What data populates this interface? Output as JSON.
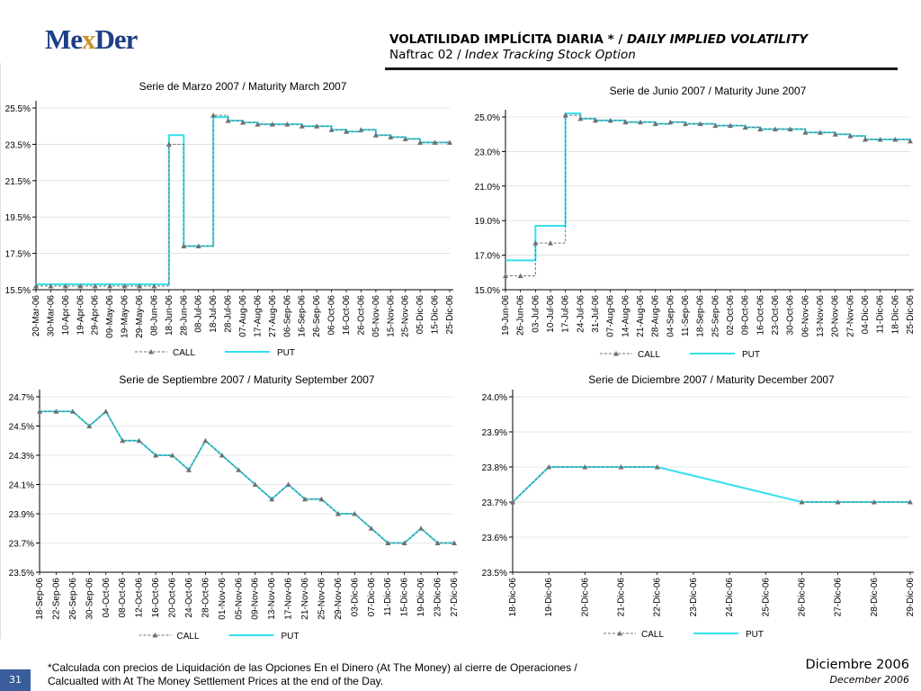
{
  "header": {
    "logo": "MexDer",
    "title_es": "VOLATILIDAD IMPLÍCITA DIARIA * / ",
    "title_en": "DAILY IMPLIED VOLATILITY",
    "subtitle_es": "Naftrac 02 / ",
    "subtitle_en": "Index Tracking Stock Option"
  },
  "footer": {
    "note_line1": "*Calculada con precios de Liquidación de las Opciones En el Dinero (At The Money) al cierre de Operaciones /",
    "note_line2": "Calcualted with At The Money Settlement Prices at the end of the Day.",
    "date_es": "Diciembre 2006",
    "date_en": "December 2006",
    "page": "31"
  },
  "colors": {
    "call": "#707070",
    "put": "#33e0ef",
    "axis": "#000000",
    "grid": "#d0d0d0"
  },
  "chart_data": [
    {
      "type": "line",
      "title": "Serie de Marzo 2007 / Maturity March 2007",
      "ylim": [
        15.5,
        25.5
      ],
      "yticks": [
        "15.5%",
        "17.5%",
        "19.5%",
        "21.5%",
        "23.5%",
        "25.5%"
      ],
      "categories": [
        "20-Mar-06",
        "30-Mar-06",
        "10-Apr-06",
        "19-Apr-06",
        "29-Apr-06",
        "09-May-06",
        "19-May-06",
        "29-May-06",
        "08-Jun-06",
        "18-Jun-06",
        "28-Jun-06",
        "08-Jul-06",
        "18-Jul-06",
        "28-Jul-06",
        "07-Aug-06",
        "17-Aug-06",
        "27-Aug-06",
        "06-Sep-06",
        "16-Sep-06",
        "26-Sep-06",
        "06-Oct-06",
        "16-Oct-06",
        "26-Oct-06",
        "05-Nov-06",
        "15-Nov-06",
        "25-Nov-06",
        "05-Dic-06",
        "15-Dic-06",
        "25-Dic-06"
      ],
      "series": [
        {
          "name": "CALL",
          "values": [
            15.7,
            15.7,
            15.7,
            15.7,
            15.7,
            15.7,
            15.7,
            15.7,
            15.7,
            23.5,
            17.9,
            17.9,
            25.1,
            24.8,
            24.7,
            24.6,
            24.6,
            24.6,
            24.5,
            24.5,
            24.3,
            24.2,
            24.3,
            24.0,
            23.9,
            23.8,
            23.6,
            23.6,
            23.6
          ]
        },
        {
          "name": "PUT",
          "values": [
            15.8,
            15.8,
            15.8,
            15.8,
            15.8,
            15.8,
            15.8,
            15.8,
            15.8,
            24.0,
            17.9,
            17.9,
            25.0,
            24.8,
            24.7,
            24.6,
            24.6,
            24.6,
            24.5,
            24.5,
            24.3,
            24.2,
            24.3,
            24.0,
            23.9,
            23.8,
            23.6,
            23.6,
            23.6
          ]
        }
      ]
    },
    {
      "type": "line",
      "title": "Serie de Junio 2007 / Maturity June 2007",
      "ylim": [
        15.0,
        25.0
      ],
      "yticks": [
        "15.0%",
        "17.0%",
        "19.0%",
        "21.0%",
        "23.0%",
        "25.0%"
      ],
      "categories": [
        "19-Jun-06",
        "26-Jun-06",
        "03-Jul-06",
        "10-Jul-06",
        "17-Jul-06",
        "24-Jul-06",
        "31-Jul-06",
        "07-Aug-06",
        "14-Aug-06",
        "21-Aug-06",
        "28-Aug-06",
        "04-Sep-06",
        "11-Sep-06",
        "18-Sep-06",
        "25-Sep-06",
        "02-Oct-06",
        "09-Oct-06",
        "16-Oct-06",
        "23-Oct-06",
        "30-Oct-06",
        "06-Nov-06",
        "13-Nov-06",
        "20-Nov-06",
        "27-Nov-06",
        "04-Dic-06",
        "11-Dic-06",
        "18-Dic-06",
        "25-Dic-06"
      ],
      "series": [
        {
          "name": "CALL",
          "values": [
            15.8,
            15.8,
            17.7,
            17.7,
            25.1,
            24.9,
            24.8,
            24.8,
            24.7,
            24.7,
            24.6,
            24.7,
            24.6,
            24.6,
            24.5,
            24.5,
            24.4,
            24.3,
            24.3,
            24.3,
            24.1,
            24.1,
            24.0,
            23.9,
            23.7,
            23.7,
            23.7,
            23.6
          ]
        },
        {
          "name": "PUT",
          "values": [
            16.7,
            16.7,
            18.7,
            18.7,
            25.2,
            24.9,
            24.8,
            24.8,
            24.7,
            24.7,
            24.6,
            24.7,
            24.6,
            24.6,
            24.5,
            24.5,
            24.4,
            24.3,
            24.3,
            24.3,
            24.1,
            24.1,
            24.0,
            23.9,
            23.7,
            23.7,
            23.7,
            23.6
          ]
        }
      ]
    },
    {
      "type": "line",
      "title": "Serie de Septiembre 2007 / Maturity September 2007",
      "ylim": [
        23.5,
        24.7
      ],
      "yticks": [
        "23.5%",
        "23.7%",
        "23.9%",
        "24.1%",
        "24.3%",
        "24.5%",
        "24.7%"
      ],
      "categories": [
        "18-Sep-06",
        "22-Sep-06",
        "26-Sep-06",
        "30-Sep-06",
        "04-Oct-06",
        "08-Oct-06",
        "12-Oct-06",
        "16-Oct-06",
        "20-Oct-06",
        "24-Oct-06",
        "28-Oct-06",
        "01-Nov-06",
        "05-Nov-06",
        "09-Nov-06",
        "13-Nov-06",
        "17-Nov-06",
        "21-Nov-06",
        "25-Nov-06",
        "29-Nov-06",
        "03-Dic-06",
        "07-Dic-06",
        "11-Dic-06",
        "15-Dic-06",
        "19-Dic-06",
        "23-Dic-06",
        "27-Dic-06"
      ],
      "series": [
        {
          "name": "CALL",
          "values": [
            24.6,
            24.6,
            24.6,
            24.5,
            24.6,
            24.4,
            24.4,
            24.3,
            24.3,
            24.2,
            24.4,
            24.3,
            24.2,
            24.1,
            24.0,
            24.1,
            24.0,
            24.0,
            23.9,
            23.9,
            23.8,
            23.7,
            23.7,
            23.8,
            23.7,
            23.7
          ]
        },
        {
          "name": "PUT",
          "values": [
            24.6,
            24.6,
            24.6,
            24.5,
            24.6,
            24.4,
            24.4,
            24.3,
            24.3,
            24.2,
            24.4,
            24.3,
            24.2,
            24.1,
            24.0,
            24.1,
            24.0,
            24.0,
            23.9,
            23.9,
            23.8,
            23.7,
            23.7,
            23.8,
            23.7,
            23.7
          ]
        }
      ]
    },
    {
      "type": "line",
      "title": "Serie de Diciembre 2007 / Maturity December 2007",
      "ylim": [
        23.5,
        24.0
      ],
      "yticks": [
        "23.5%",
        "23.6%",
        "23.7%",
        "23.8%",
        "23.9%",
        "24.0%"
      ],
      "categories": [
        "18-Dic-06",
        "19-Dic-06",
        "20-Dic-06",
        "21-Dic-06",
        "22-Dic-06",
        "23-Dic-06",
        "24-Dic-06",
        "25-Dic-06",
        "26-Dic-06",
        "27-Dic-06",
        "28-Dic-06",
        "29-Dic-06"
      ],
      "series": [
        {
          "name": "CALL",
          "values": [
            23.7,
            23.8,
            23.8,
            23.8,
            23.8,
            null,
            null,
            null,
            23.7,
            23.7,
            23.7,
            23.7
          ]
        },
        {
          "name": "PUT",
          "values": [
            23.7,
            23.8,
            23.8,
            23.8,
            23.8,
            null,
            null,
            null,
            23.7,
            23.7,
            23.7,
            23.7
          ]
        }
      ]
    }
  ]
}
